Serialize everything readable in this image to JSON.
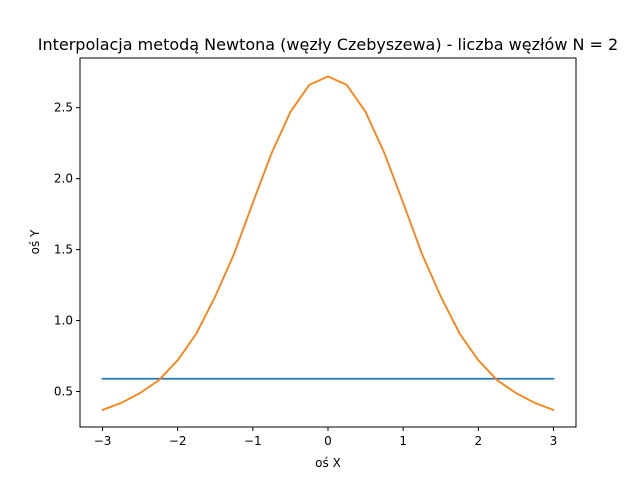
{
  "chart_data": {
    "type": "line",
    "title": "Interpolacja metodą Newtona (węzły Czebyszewa) - liczba węzłów N = 2",
    "xlabel": "oś X",
    "ylabel": "oś Y",
    "xlim": [
      -3.3,
      3.3
    ],
    "ylim": [
      0.25,
      2.85
    ],
    "xticks": [
      -3,
      -2,
      -1,
      0,
      1,
      2,
      3
    ],
    "xtick_labels": [
      "−3",
      "−2",
      "−1",
      "0",
      "1",
      "2",
      "3"
    ],
    "yticks": [
      0.5,
      1.0,
      1.5,
      2.0,
      2.5
    ],
    "ytick_labels": [
      "0.5",
      "1.0",
      "1.5",
      "2.0",
      "2.5"
    ],
    "grid": false,
    "series": [
      {
        "color": "#1f77b4",
        "x": [
          -3,
          -2,
          -1,
          0,
          1,
          2,
          3
        ],
        "y": [
          0.59,
          0.59,
          0.59,
          0.59,
          0.59,
          0.59,
          0.59
        ]
      },
      {
        "color": "#ff7f0e",
        "x": [
          -3,
          -2.75,
          -2.5,
          -2.25,
          -2,
          -1.75,
          -1.5,
          -1.25,
          -1,
          -0.75,
          -0.5,
          -0.25,
          0,
          0.25,
          0.5,
          0.75,
          1,
          1.25,
          1.5,
          1.75,
          2,
          2.25,
          2.5,
          2.75,
          3
        ],
        "y": [
          0.37,
          0.42,
          0.49,
          0.58,
          0.72,
          0.91,
          1.17,
          1.47,
          1.83,
          2.18,
          2.47,
          2.66,
          2.72,
          2.66,
          2.47,
          2.18,
          1.83,
          1.47,
          1.17,
          0.91,
          0.72,
          0.58,
          0.49,
          0.42,
          0.37
        ]
      }
    ]
  }
}
